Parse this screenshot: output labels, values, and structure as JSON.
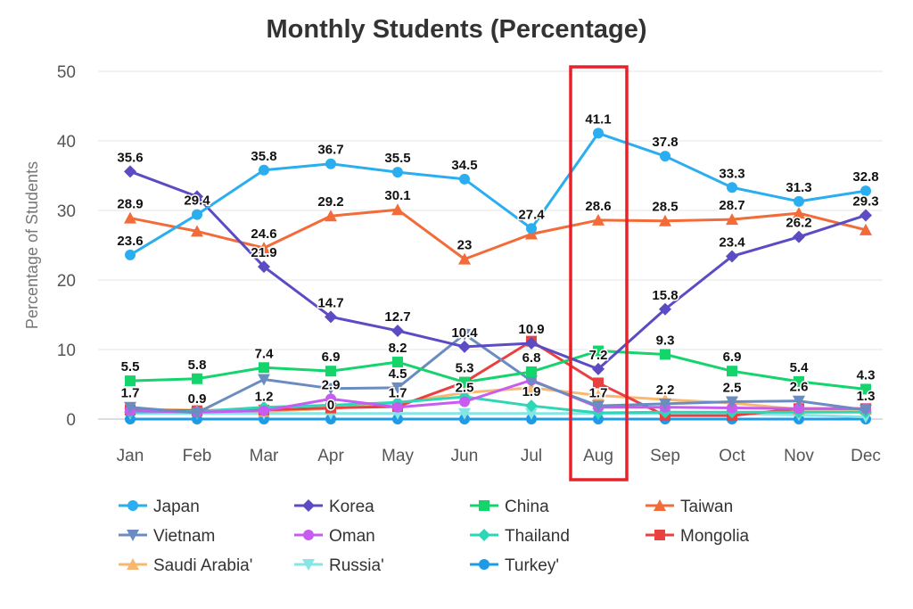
{
  "chart_data": {
    "type": "line",
    "title": "Monthly Students (Percentage)",
    "xlabel": "",
    "ylabel": "Percentage of Students",
    "categories": [
      "Jan",
      "Feb",
      "Mar",
      "Apr",
      "May",
      "Jun",
      "Jul",
      "Aug",
      "Sep",
      "Oct",
      "Nov",
      "Dec"
    ],
    "ylim": [
      0,
      50
    ],
    "yticks": [
      0,
      10,
      20,
      30,
      40,
      50
    ],
    "grid": true,
    "legend_position": "bottom",
    "highlight_category": "Aug",
    "highlight_color": "#e8202a",
    "series": [
      {
        "name": "Japan",
        "color": "#2aaef0",
        "marker": "circle",
        "values": [
          23.6,
          29.4,
          35.8,
          36.7,
          35.5,
          34.5,
          27.4,
          41.1,
          37.8,
          33.3,
          31.3,
          32.8
        ],
        "labels": [
          "23.6",
          "29.4",
          "35.8",
          "36.7",
          "35.5",
          "34.5",
          "27.4",
          "41.1",
          "37.8",
          "33.3",
          "31.3",
          "32.8"
        ]
      },
      {
        "name": "Korea",
        "color": "#5b4cc4",
        "marker": "diamond",
        "values": [
          35.6,
          32.0,
          21.9,
          14.7,
          12.7,
          10.4,
          10.9,
          7.2,
          15.8,
          23.4,
          26.2,
          29.3
        ],
        "labels": [
          "35.6",
          "",
          "21.9",
          "14.7",
          "12.7",
          "10.4",
          "10.9",
          "7.2",
          "15.8",
          "23.4",
          "26.2",
          "29.3"
        ]
      },
      {
        "name": "China",
        "color": "#14d46c",
        "marker": "square",
        "values": [
          5.5,
          5.8,
          7.4,
          6.9,
          8.2,
          5.3,
          6.8,
          9.8,
          9.3,
          6.9,
          5.4,
          4.3
        ],
        "labels": [
          "5.5",
          "5.8",
          "7.4",
          "6.9",
          "8.2",
          "5.3",
          "6.8",
          "",
          "9.3",
          "6.9",
          "5.4",
          "4.3"
        ]
      },
      {
        "name": "Taiwan",
        "color": "#f26b38",
        "marker": "triangle",
        "values": [
          28.9,
          27.0,
          24.6,
          29.2,
          30.1,
          23,
          26.6,
          28.6,
          28.5,
          28.7,
          29.6,
          27.2
        ],
        "labels": [
          "28.9",
          "",
          "24.6",
          "29.2",
          "30.1",
          "23",
          "",
          "28.6",
          "28.5",
          "28.7",
          "",
          ""
        ]
      },
      {
        "name": "Vietnam",
        "color": "#6b8cc0",
        "marker": "triangle-down",
        "values": [
          1.7,
          0.9,
          5.7,
          4.4,
          4.5,
          12.2,
          5.5,
          1.9,
          2.2,
          2.5,
          2.6,
          1.3
        ],
        "labels": [
          "1.7",
          "0.9",
          "",
          "",
          "4.5",
          "",
          "",
          "",
          "2.2",
          "2.5",
          "2.6",
          "1.3"
        ]
      },
      {
        "name": "Oman",
        "color": "#c75cf0",
        "marker": "circle",
        "values": [
          1.2,
          1.0,
          1.2,
          2.9,
          1.7,
          2.5,
          5.6,
          1.7,
          1.7,
          1.6,
          1.5,
          1.5
        ],
        "labels": [
          "",
          "",
          "1.2",
          "2.9",
          "1.7",
          "2.5",
          "",
          "1.7",
          "",
          "",
          "",
          ""
        ]
      },
      {
        "name": "Thailand",
        "color": "#2ed6b8",
        "marker": "diamond",
        "values": [
          1.0,
          1.1,
          1.7,
          2.0,
          2.4,
          3.2,
          1.9,
          0.9,
          1.0,
          1.0,
          1.0,
          1.0
        ],
        "labels": [
          "",
          "",
          "",
          "",
          "",
          "",
          "1.9",
          "",
          "",
          "",
          "",
          ""
        ]
      },
      {
        "name": "Mongolia",
        "color": "#ea4040",
        "marker": "square",
        "values": [
          1.3,
          1.2,
          1.3,
          1.6,
          1.8,
          5.3,
          11.2,
          5.2,
          0.5,
          0.5,
          1.5,
          1.5
        ],
        "labels": [
          "",
          "",
          "",
          "",
          "",
          "",
          "",
          "",
          "",
          "",
          "",
          ""
        ]
      },
      {
        "name": "Saudi Arabia'",
        "color": "#f8b870",
        "marker": "triangle",
        "values": [
          1.4,
          1.3,
          1.1,
          1.5,
          2.3,
          3.8,
          4.5,
          3.4,
          2.8,
          2.3,
          1.4,
          1.4
        ],
        "labels": [
          "",
          "",
          "",
          "",
          "",
          "",
          "",
          "",
          "",
          "",
          "",
          ""
        ]
      },
      {
        "name": "Russia'",
        "color": "#86e6e6",
        "marker": "triangle-down",
        "values": [
          0.8,
          0.8,
          0.8,
          0.8,
          0.8,
          0.8,
          0.8,
          0.8,
          0.8,
          0.8,
          0.6,
          0.3
        ],
        "labels": [
          "",
          "",
          "",
          "",
          "",
          "",
          "",
          "",
          "",
          "",
          "",
          ""
        ]
      },
      {
        "name": "Turkey'",
        "color": "#1f9be6",
        "marker": "circle",
        "values": [
          0,
          0,
          0,
          0,
          0,
          0,
          0,
          0,
          0,
          0,
          0,
          0
        ],
        "labels": [
          "",
          "",
          "",
          "0",
          "",
          "",
          "",
          "",
          "",
          "",
          "",
          ""
        ]
      }
    ]
  }
}
